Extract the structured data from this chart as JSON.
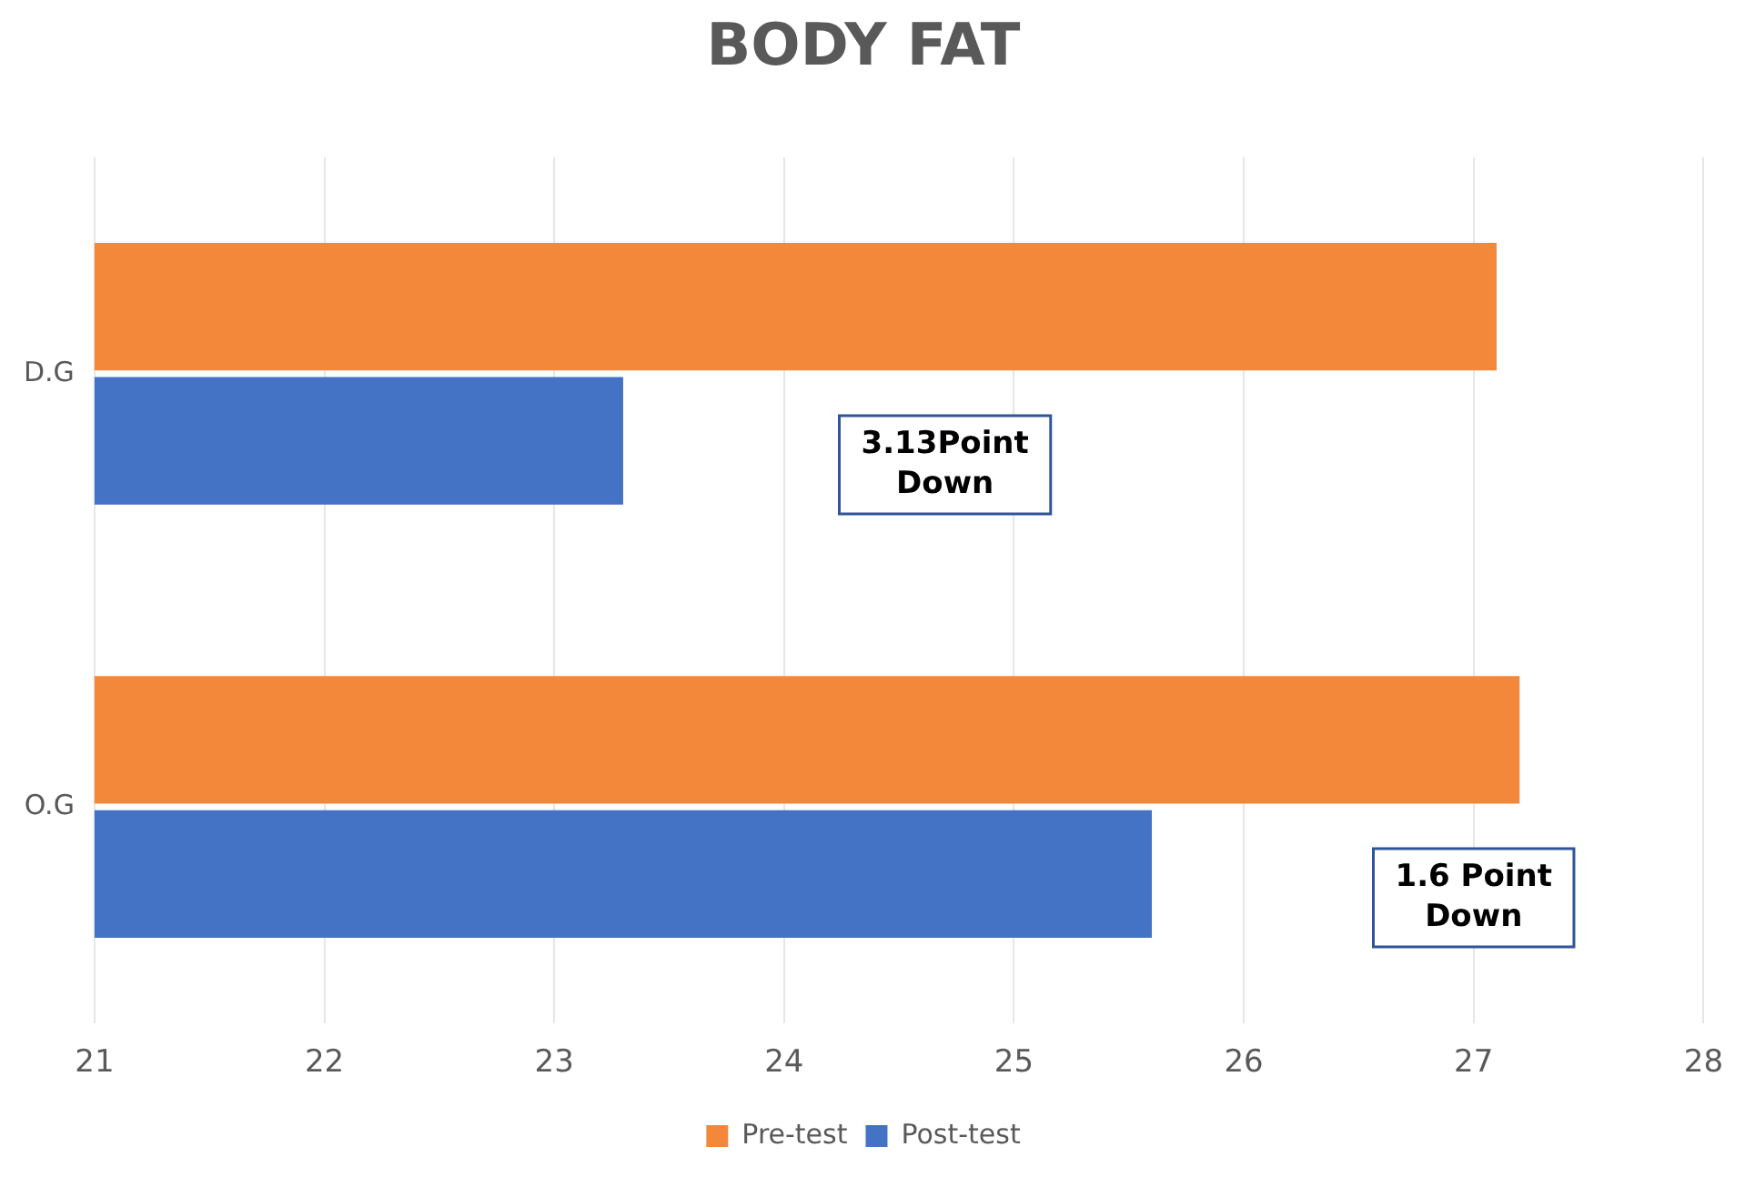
{
  "chart_data": {
    "type": "bar",
    "orientation": "horizontal",
    "title": "BODY FAT",
    "categories": [
      "D.G",
      "O.G"
    ],
    "series": [
      {
        "name": "Pre-test",
        "color": "#f4883a",
        "values": [
          27.1,
          27.2
        ]
      },
      {
        "name": "Post-test",
        "color": "#4472c4",
        "values": [
          23.3,
          25.6
        ]
      }
    ],
    "xlim": [
      21,
      28
    ],
    "xticks": [
      21,
      22,
      23,
      24,
      25,
      26,
      27,
      28
    ],
    "grid": "x",
    "legend": "bottom",
    "annotations": [
      {
        "text": "3.13Point\nDown",
        "x": 24.7,
        "y": "D.G"
      },
      {
        "text": "1.6 Point\nDown",
        "x": 27,
        "y": "O.G"
      }
    ]
  }
}
